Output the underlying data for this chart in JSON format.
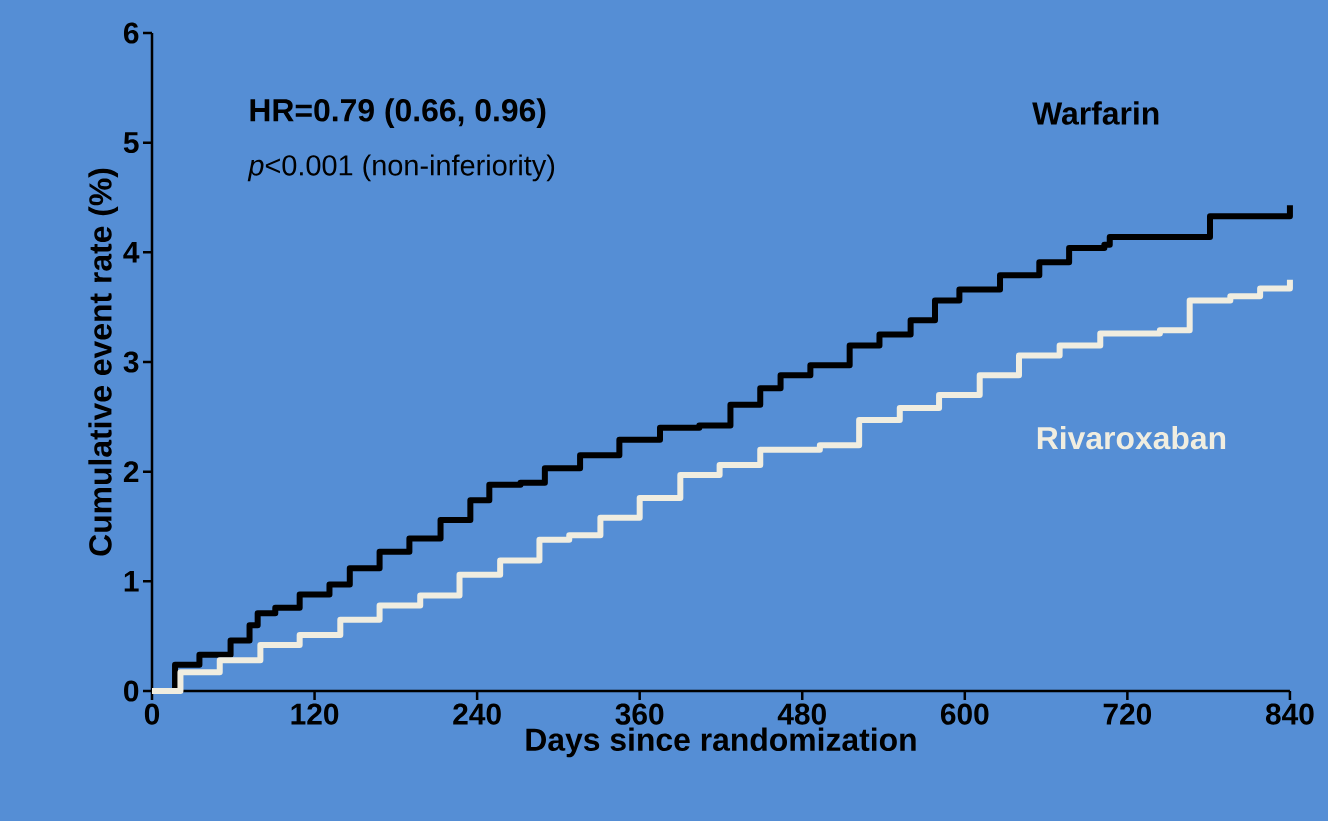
{
  "chart_data": {
    "type": "step",
    "xlabel": "Days since randomization",
    "ylabel": "Cumulative event rate (%)",
    "xlim": [
      0,
      840
    ],
    "ylim": [
      0,
      6
    ],
    "xticks": [
      0,
      120,
      240,
      360,
      480,
      600,
      720,
      840
    ],
    "yticks": [
      0,
      1,
      2,
      3,
      4,
      5,
      6
    ],
    "grid": false,
    "legend": false,
    "annotations": [
      "HR=0.79 (0.66, 0.96)",
      "*p*<0.001 (non-inferiority)"
    ],
    "series": [
      {
        "name": "Warfarin",
        "color": "#000000",
        "x": [
          0,
          17,
          35,
          58,
          72,
          78,
          91,
          109,
          131,
          146,
          168,
          190,
          213,
          235,
          249,
          272,
          290,
          316,
          345,
          375,
          404,
          427,
          449,
          464,
          486,
          515,
          537,
          560,
          578,
          596,
          626,
          655,
          677,
          703,
          707,
          759,
          781,
          822,
          840
        ],
        "values": [
          0,
          0.24,
          0.33,
          0.46,
          0.6,
          0.71,
          0.76,
          0.88,
          0.97,
          1.12,
          1.27,
          1.39,
          1.56,
          1.74,
          1.88,
          1.9,
          2.03,
          2.15,
          2.29,
          2.4,
          2.42,
          2.61,
          2.76,
          2.88,
          2.97,
          3.15,
          3.25,
          3.38,
          3.56,
          3.66,
          3.79,
          3.91,
          4.04,
          4.07,
          4.14,
          4.14,
          4.33,
          4.33,
          4.43
        ]
      },
      {
        "name": "Rivaroxaban",
        "color": "#f0ede0",
        "x": [
          0,
          21,
          50,
          80,
          109,
          139,
          168,
          198,
          227,
          257,
          286,
          308,
          331,
          360,
          390,
          419,
          449,
          493,
          522,
          552,
          581,
          611,
          640,
          670,
          700,
          744,
          766,
          796,
          818,
          840
        ],
        "values": [
          0,
          0.17,
          0.28,
          0.42,
          0.51,
          0.65,
          0.78,
          0.87,
          1.06,
          1.19,
          1.38,
          1.42,
          1.58,
          1.76,
          1.97,
          2.06,
          2.2,
          2.24,
          2.47,
          2.58,
          2.7,
          2.88,
          3.06,
          3.15,
          3.26,
          3.29,
          3.56,
          3.6,
          3.67,
          3.75
        ]
      }
    ]
  }
}
